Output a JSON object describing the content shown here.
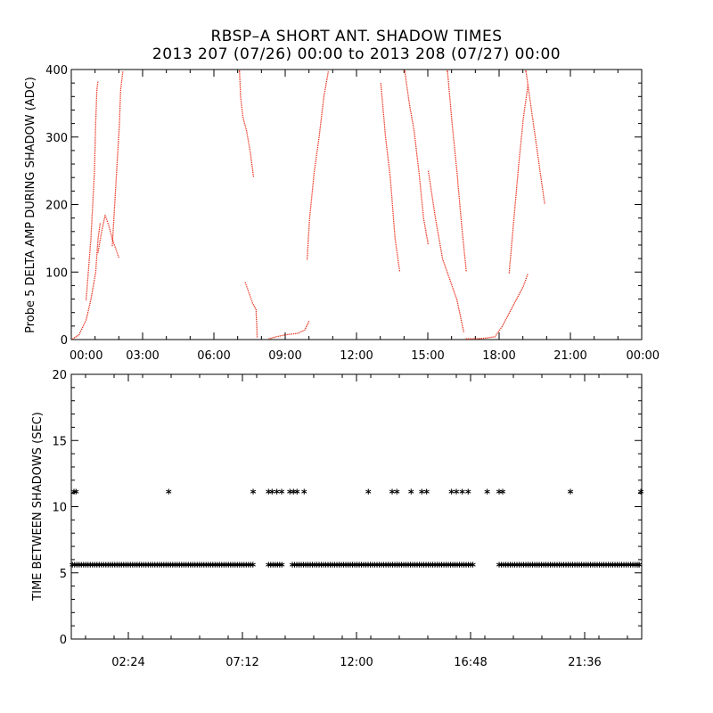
{
  "title": "RBSP–A SHORT ANT. SHADOW TIMES",
  "subtitle": "2013 207 (07/26) 00:00 to 2013 208 (07/27) 00:00",
  "colors": {
    "top_points": "#e8321e",
    "bottom_points": "#000000",
    "axes": "#000000"
  },
  "chart_data": [
    {
      "type": "scatter",
      "ylabel": "Probe 5 DELTA AMP DURING SHADOW (ADC)",
      "xlabel": "",
      "xlim": [
        0,
        24
      ],
      "ylim": [
        0,
        400
      ],
      "x_tick_labels": [
        "00:00",
        "03:00",
        "06:00",
        "09:00",
        "12:00",
        "15:00",
        "18:00",
        "21:00",
        "00:00"
      ],
      "y_tick_labels": [
        "0",
        "100",
        "200",
        "300",
        "400"
      ],
      "marker": "dot",
      "traces": [
        {
          "x": [
            0.05,
            0.3,
            0.6,
            0.8,
            1.0,
            1.1,
            1.2
          ],
          "y": [
            2,
            8,
            30,
            60,
            100,
            150,
            175
          ]
        },
        {
          "x": [
            0.6,
            0.8,
            0.95,
            1.0,
            1.05,
            1.1
          ],
          "y": [
            60,
            150,
            250,
            320,
            370,
            385
          ]
        },
        {
          "x": [
            1.1,
            1.25,
            1.4,
            1.55,
            1.7,
            1.85,
            2.0
          ],
          "y": [
            130,
            160,
            185,
            170,
            150,
            135,
            120
          ]
        },
        {
          "x": [
            1.7,
            1.8,
            1.9,
            2.0,
            2.05,
            2.15
          ],
          "y": [
            140,
            200,
            260,
            320,
            370,
            400
          ]
        },
        {
          "x": [
            7.05,
            7.1,
            7.2,
            7.35,
            7.5,
            7.65
          ],
          "y": [
            400,
            360,
            330,
            310,
            280,
            240
          ]
        },
        {
          "x": [
            7.3,
            7.45,
            7.6,
            7.75,
            7.8
          ],
          "y": [
            85,
            70,
            55,
            45,
            2
          ]
        },
        {
          "x": [
            8.3,
            8.6,
            9.0,
            9.5,
            9.8,
            10.0
          ],
          "y": [
            2,
            5,
            8,
            10,
            15,
            30
          ]
        },
        {
          "x": [
            9.9,
            10.0,
            10.2,
            10.4,
            10.6,
            10.8
          ],
          "y": [
            120,
            180,
            250,
            300,
            360,
            400
          ]
        },
        {
          "x": [
            13.0,
            13.2,
            13.4,
            13.6,
            13.8
          ],
          "y": [
            380,
            300,
            240,
            150,
            100
          ]
        },
        {
          "x": [
            14.0,
            14.2,
            14.4,
            14.6,
            14.8,
            15.0
          ],
          "y": [
            400,
            350,
            310,
            250,
            180,
            140
          ]
        },
        {
          "x": [
            15.0,
            15.3,
            15.6,
            15.9,
            16.2,
            16.5
          ],
          "y": [
            250,
            180,
            120,
            90,
            60,
            10
          ]
        },
        {
          "x": [
            15.8,
            16.0,
            16.2,
            16.4,
            16.6
          ],
          "y": [
            400,
            320,
            250,
            170,
            100
          ]
        },
        {
          "x": [
            16.6,
            17.0,
            17.4,
            17.8
          ],
          "y": [
            2,
            2,
            3,
            5
          ]
        },
        {
          "x": [
            17.8,
            18.1,
            18.4,
            18.7,
            19.0,
            19.2
          ],
          "y": [
            5,
            20,
            40,
            60,
            80,
            100
          ]
        },
        {
          "x": [
            18.4,
            18.6,
            18.8,
            19.0,
            19.2
          ],
          "y": [
            100,
            180,
            260,
            330,
            380
          ]
        },
        {
          "x": [
            19.1,
            19.3,
            19.5,
            19.7,
            19.9
          ],
          "y": [
            400,
            350,
            300,
            250,
            200
          ]
        }
      ]
    },
    {
      "type": "scatter",
      "ylabel": "TIME BETWEEN SHADOWS (SEC)",
      "xlabel": "",
      "xlim": [
        0,
        24
      ],
      "ylim": [
        0,
        20
      ],
      "x_tick_labels": [
        "02:24",
        "07:12",
        "12:00",
        "16:48",
        "21:36"
      ],
      "y_tick_labels": [
        "0",
        "5",
        "10",
        "15",
        "20"
      ],
      "marker": "asterisk",
      "baseline_value": 5.5,
      "baseline_intervals": [
        [
          0.05,
          7.65
        ],
        [
          8.3,
          8.9
        ],
        [
          9.3,
          16.9
        ],
        [
          18.0,
          24.0
        ]
      ],
      "upper_value": 11.0,
      "upper_x": [
        0.05,
        0.2,
        4.1,
        7.65,
        8.3,
        8.45,
        8.65,
        8.85,
        9.2,
        9.35,
        9.5,
        9.8,
        12.5,
        13.5,
        13.7,
        14.3,
        14.75,
        14.95,
        16.0,
        16.2,
        16.45,
        16.7,
        17.5,
        18.0,
        18.15,
        21.0,
        24.0
      ]
    }
  ]
}
